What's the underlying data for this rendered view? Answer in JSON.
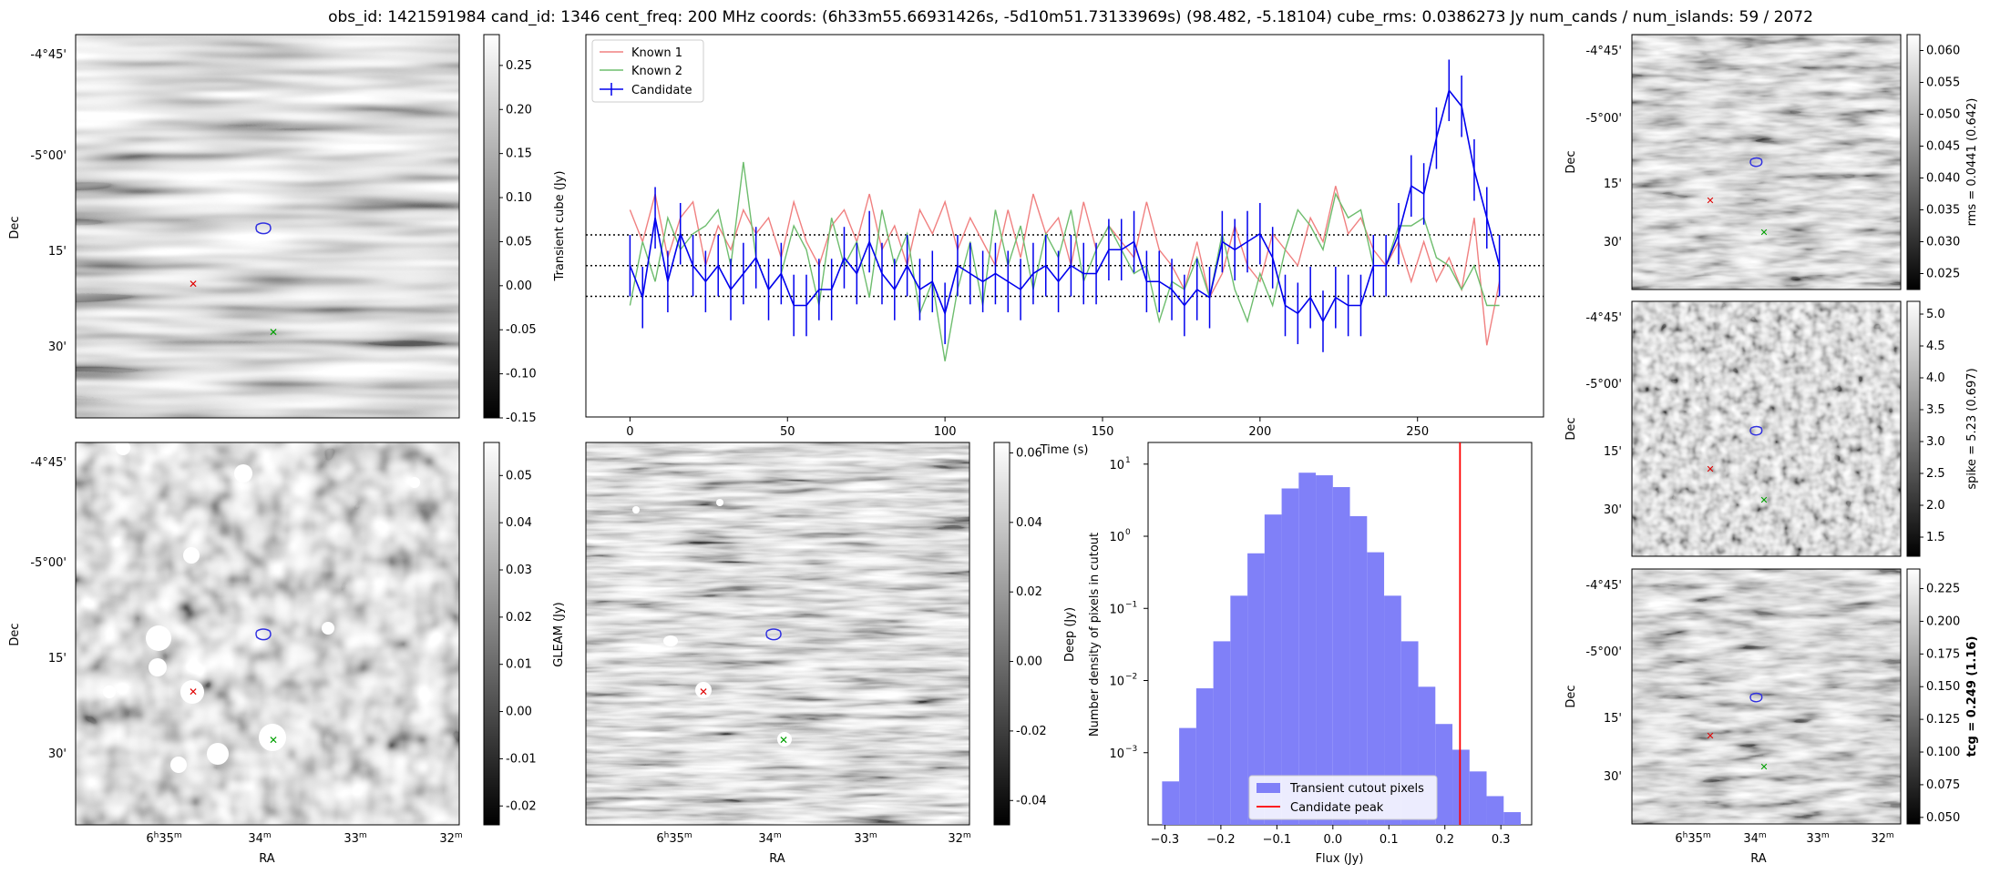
{
  "title": "obs_id: 1421591984 cand_id: 1346 cent_freq: 200 MHz coords: (6h33m55.66931426s, -5d10m51.73133969s) (98.482, -5.18104) cube_rms: 0.0386273 Jy num_cands / num_islands: 59 / 2072",
  "sky": {
    "dec_ticks": [
      "-4°45'",
      "-5°00'",
      "15'",
      "30'"
    ],
    "ra_ticks": [
      "6h35m",
      "34m",
      "33m",
      "32m"
    ],
    "dec_label": "Dec",
    "ra_label": "RA"
  },
  "panels": {
    "transient_image": {
      "cbar_label": "",
      "cbar_ticks": [
        "0.25",
        "0.20",
        "0.15",
        "0.10",
        "0.05",
        "0.00",
        "-0.05",
        "-0.10",
        "-0.15"
      ],
      "cbar_range": [
        -0.15,
        0.285
      ]
    },
    "gleam_image": {
      "cbar_label": "GLEAM (Jy)",
      "cbar_ticks": [
        "0.05",
        "0.04",
        "0.03",
        "0.02",
        "0.01",
        "0.00",
        "-0.01",
        "-0.02"
      ],
      "cbar_range": [
        -0.024,
        0.057
      ]
    },
    "deep_image": {
      "cbar_label": "Deep (Jy)",
      "cbar_ticks": [
        "0.06",
        "0.04",
        "0.02",
        "0.00",
        "-0.02",
        "-0.04"
      ],
      "cbar_range": [
        -0.047,
        0.063
      ]
    },
    "rms_image": {
      "cbar_label": "rms = 0.0441 (0.642)",
      "cbar_ticks": [
        "0.060",
        "0.055",
        "0.050",
        "0.045",
        "0.040",
        "0.035",
        "0.030",
        "0.025"
      ],
      "cbar_range": [
        0.0225,
        0.0625
      ]
    },
    "spike_image": {
      "cbar_label": "spike = 5.23 (0.697)",
      "cbar_ticks": [
        "5.0",
        "4.5",
        "4.0",
        "3.5",
        "3.0",
        "2.5",
        "2.0",
        "1.5"
      ],
      "cbar_range": [
        1.2,
        5.2
      ]
    },
    "tcg_image": {
      "cbar_label": "tcg = 0.249 (1.16)",
      "cbar_ticks": [
        "0.225",
        "0.200",
        "0.175",
        "0.150",
        "0.125",
        "0.100",
        "0.075",
        "0.050"
      ],
      "cbar_range": [
        0.045,
        0.24
      ]
    }
  },
  "chart_data": [
    {
      "type": "line",
      "id": "lightcurve",
      "title": "",
      "xlabel": "Time (s)",
      "ylabel": "Transient cube (Jy)",
      "xlim": [
        -14,
        290
      ],
      "ylim": [
        -0.19,
        0.29
      ],
      "xticks": [
        0,
        50,
        100,
        150,
        200,
        250
      ],
      "x": [
        0,
        4,
        8,
        12,
        16,
        20,
        24,
        28,
        32,
        36,
        40,
        44,
        48,
        52,
        56,
        60,
        64,
        68,
        72,
        76,
        80,
        84,
        88,
        92,
        96,
        100,
        104,
        108,
        112,
        116,
        120,
        124,
        128,
        132,
        136,
        140,
        144,
        148,
        152,
        156,
        160,
        164,
        168,
        172,
        176,
        180,
        184,
        188,
        192,
        196,
        200,
        204,
        208,
        212,
        216,
        220,
        224,
        228,
        232,
        236,
        240,
        244,
        248,
        252,
        256,
        260,
        264,
        268,
        272,
        276
      ],
      "hlines": [
        0.0386,
        0.0,
        -0.0386
      ],
      "series": [
        {
          "name": "Known 1",
          "color": "#f08080",
          "values": [
            0.07,
            0.03,
            0.09,
            0.01,
            0.06,
            0.08,
            0.0,
            0.05,
            0.02,
            0.07,
            0.04,
            0.06,
            0.01,
            0.08,
            0.03,
            0.0,
            0.05,
            0.07,
            0.03,
            0.09,
            0.02,
            0.05,
            0.0,
            0.07,
            0.04,
            0.08,
            0.02,
            0.06,
            0.03,
            0.0,
            0.07,
            0.01,
            0.09,
            0.04,
            0.06,
            0.0,
            0.08,
            0.02,
            0.05,
            0.03,
            0.01,
            0.08,
            0.02,
            0.0,
            -0.03,
            0.03,
            -0.04,
            -0.01,
            0.05,
            0.0,
            -0.02,
            0.04,
            0.02,
            0.0,
            0.06,
            0.03,
            0.1,
            0.04,
            0.06,
            0.02,
            0.0,
            0.03,
            -0.02,
            0.03,
            -0.02,
            0.01,
            -0.03,
            0.06,
            -0.1,
            -0.02
          ]
        },
        {
          "name": "Known 2",
          "color": "#6ebd6e",
          "values": [
            -0.05,
            0.03,
            -0.02,
            0.06,
            0.02,
            0.04,
            0.05,
            0.07,
            0.0,
            0.13,
            0.01,
            -0.03,
            -0.01,
            0.05,
            0.02,
            -0.05,
            0.06,
            0.0,
            0.03,
            -0.04,
            0.07,
            0.0,
            0.04,
            -0.06,
            -0.02,
            -0.12,
            -0.03,
            0.03,
            -0.05,
            0.07,
            0.0,
            0.05,
            -0.03,
            0.04,
            0.01,
            0.07,
            -0.02,
            0.02,
            0.05,
            0.02,
            -0.01,
            0.0,
            -0.07,
            -0.02,
            -0.03,
            0.01,
            -0.04,
            0.04,
            -0.03,
            -0.07,
            -0.01,
            -0.05,
            0.02,
            0.07,
            0.05,
            0.02,
            0.09,
            0.06,
            0.07,
            0.0,
            0.0,
            0.05,
            0.05,
            0.06,
            0.01,
            0.0,
            -0.03,
            0.0,
            -0.05,
            -0.05
          ]
        },
        {
          "name": "Candidate",
          "color": "#0000ee",
          "values": [
            0.0,
            -0.04,
            0.06,
            -0.02,
            0.04,
            0.0,
            -0.02,
            0.0,
            -0.03,
            -0.01,
            0.01,
            -0.03,
            -0.01,
            -0.05,
            -0.05,
            -0.03,
            -0.03,
            0.01,
            -0.01,
            0.03,
            -0.01,
            -0.03,
            0.0,
            -0.03,
            -0.02,
            -0.06,
            0.0,
            -0.01,
            -0.02,
            -0.01,
            -0.02,
            -0.03,
            -0.01,
            0.0,
            -0.02,
            0.0,
            -0.01,
            -0.01,
            0.02,
            0.02,
            0.03,
            -0.02,
            -0.02,
            -0.03,
            -0.05,
            -0.03,
            -0.04,
            0.03,
            0.02,
            0.03,
            0.04,
            0.01,
            -0.05,
            -0.06,
            -0.04,
            -0.07,
            -0.04,
            -0.05,
            -0.05,
            0.0,
            0.0,
            0.04,
            0.1,
            0.09,
            0.16,
            0.22,
            0.2,
            0.12,
            0.06,
            0.0
          ]
        }
      ],
      "errorbar": 0.0386,
      "legend": "top-left",
      "legend_entries": [
        "Known 1",
        "Known 2",
        "Candidate"
      ]
    },
    {
      "type": "bar",
      "id": "histogram",
      "xlabel": "Flux (Jy)",
      "ylabel": "Number density of pixels in cutout",
      "yscale": "log",
      "xlim": [
        -0.33,
        0.355
      ],
      "ylog_range": [
        -4.0,
        1.3
      ],
      "xticks": [
        -0.3,
        -0.2,
        -0.1,
        0.0,
        0.1,
        0.2,
        0.3
      ],
      "ytick_exponents": [
        -3,
        -2,
        -1,
        0,
        1
      ],
      "ytick_labels": [
        "10",
        "10",
        "10",
        "10",
        "10"
      ],
      "ytick_sup": [
        "−3",
        "−2",
        "−1",
        "0",
        "1"
      ],
      "bin_width": 0.0305,
      "bin_starts": [
        -0.305,
        -0.2745,
        -0.244,
        -0.2135,
        -0.183,
        -0.1525,
        -0.122,
        -0.0915,
        -0.061,
        -0.0305,
        0.0,
        0.0305,
        0.061,
        0.0915,
        0.122,
        0.1525,
        0.183,
        0.2135,
        0.244,
        0.2745,
        0.305
      ],
      "values": [
        0.0004,
        0.0022,
        0.0078,
        0.035,
        0.15,
        0.58,
        2.0,
        4.6,
        7.6,
        7.0,
        4.8,
        1.9,
        0.6,
        0.15,
        0.035,
        0.0082,
        0.0025,
        0.0011,
        0.00055,
        0.00025,
        0.00015
      ],
      "vline": 0.227,
      "vline_color": "#ff0000",
      "bar_color": "#8080f8",
      "legend": "bottom-center",
      "legend_entries": [
        "Transient cutout pixels",
        "Candidate peak"
      ]
    }
  ]
}
